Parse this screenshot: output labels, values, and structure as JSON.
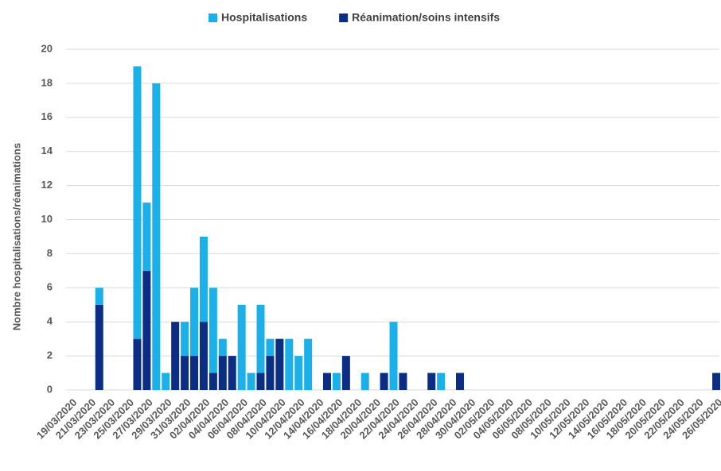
{
  "chart_data": {
    "type": "stacked_bar",
    "y_label": "Nombre hospitalisations/réanimations",
    "categories": [
      "19/03/2020",
      null,
      "21/03/2020",
      null,
      "23/03/2020",
      null,
      "25/03/2020",
      null,
      "27/03/2020",
      null,
      "29/03/2020",
      null,
      "31/03/2020",
      null,
      "02/04/2020",
      null,
      "04/04/2020",
      null,
      "06/04/2020",
      null,
      "08/04/2020",
      null,
      "10/04/2020",
      null,
      "12/04/2020",
      null,
      "14/04/2020",
      null,
      "16/04/2020",
      null,
      "18/04/2020",
      null,
      "20/04/2020",
      null,
      "22/04/2020",
      null,
      "24/04/2020",
      null,
      "26/04/2020",
      null,
      "28/04/2020",
      null,
      "30/04/2020",
      null,
      "02/05/2020",
      null,
      "04/05/2020",
      null,
      "06/05/2020",
      null,
      "08/05/2020",
      null,
      "10/05/2020",
      null,
      "12/05/2020",
      null,
      "14/05/2020",
      null,
      "16/05/2020",
      null,
      "18/05/2020",
      null,
      "20/05/2020",
      null,
      "22/05/2020",
      null,
      "24/05/2020",
      null,
      "26/05/2020"
    ],
    "series": [
      {
        "name": "Hospitalisations",
        "color": "#1cb0ea",
        "values": [
          0,
          0,
          0,
          1,
          0,
          0,
          0,
          16,
          4,
          18,
          1,
          0,
          2,
          4,
          5,
          5,
          1,
          0,
          5,
          1,
          4,
          1,
          0,
          3,
          2,
          3,
          0,
          0,
          1,
          0,
          0,
          1,
          0,
          0,
          4,
          0,
          0,
          0,
          0,
          1,
          0,
          0,
          0,
          0,
          0,
          0,
          0,
          0,
          0,
          0,
          0,
          0,
          0,
          0,
          0,
          0,
          0,
          0,
          0,
          0,
          0,
          0,
          0,
          0,
          0,
          0,
          0,
          0,
          0
        ]
      },
      {
        "name": "Réanimation/soins intensifs",
        "color": "#0b2d84",
        "values": [
          0,
          0,
          0,
          5,
          0,
          0,
          0,
          3,
          7,
          0,
          0,
          4,
          2,
          2,
          4,
          1,
          2,
          2,
          0,
          0,
          1,
          2,
          3,
          0,
          0,
          0,
          0,
          1,
          0,
          2,
          0,
          0,
          0,
          1,
          0,
          1,
          0,
          0,
          1,
          0,
          0,
          1,
          0,
          0,
          0,
          0,
          0,
          0,
          0,
          0,
          0,
          0,
          0,
          0,
          0,
          0,
          0,
          0,
          0,
          0,
          0,
          0,
          0,
          0,
          0,
          0,
          0,
          0,
          1
        ]
      }
    ],
    "ylim": [
      0,
      20
    ],
    "yticks": [
      0,
      2,
      4,
      6,
      8,
      10,
      12,
      14,
      16,
      18,
      20
    ],
    "grid": true,
    "legend": "top"
  }
}
